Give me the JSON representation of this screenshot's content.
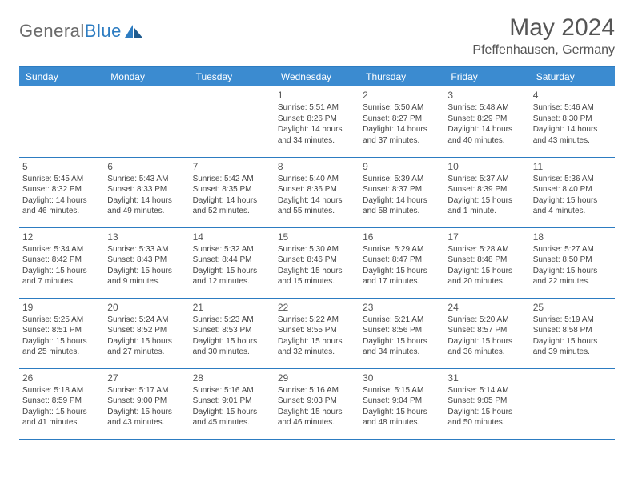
{
  "brand": {
    "part1": "General",
    "part2": "Blue"
  },
  "title": "May 2024",
  "location": "Pfeffenhausen, Germany",
  "style": {
    "header_bg": "#3b8bd0",
    "header_text": "#ffffff",
    "border_color": "#2d7cc1",
    "page_bg": "#ffffff",
    "text_color": "#444444",
    "title_color": "#555555",
    "title_fontsize": 30,
    "location_fontsize": 16,
    "dayheader_fontsize": 12,
    "cell_fontsize": 10
  },
  "day_headers": [
    "Sunday",
    "Monday",
    "Tuesday",
    "Wednesday",
    "Thursday",
    "Friday",
    "Saturday"
  ],
  "weeks": [
    [
      null,
      null,
      null,
      {
        "n": "1",
        "sr": "5:51 AM",
        "ss": "8:26 PM",
        "dl": "14 hours and 34 minutes."
      },
      {
        "n": "2",
        "sr": "5:50 AM",
        "ss": "8:27 PM",
        "dl": "14 hours and 37 minutes."
      },
      {
        "n": "3",
        "sr": "5:48 AM",
        "ss": "8:29 PM",
        "dl": "14 hours and 40 minutes."
      },
      {
        "n": "4",
        "sr": "5:46 AM",
        "ss": "8:30 PM",
        "dl": "14 hours and 43 minutes."
      }
    ],
    [
      {
        "n": "5",
        "sr": "5:45 AM",
        "ss": "8:32 PM",
        "dl": "14 hours and 46 minutes."
      },
      {
        "n": "6",
        "sr": "5:43 AM",
        "ss": "8:33 PM",
        "dl": "14 hours and 49 minutes."
      },
      {
        "n": "7",
        "sr": "5:42 AM",
        "ss": "8:35 PM",
        "dl": "14 hours and 52 minutes."
      },
      {
        "n": "8",
        "sr": "5:40 AM",
        "ss": "8:36 PM",
        "dl": "14 hours and 55 minutes."
      },
      {
        "n": "9",
        "sr": "5:39 AM",
        "ss": "8:37 PM",
        "dl": "14 hours and 58 minutes."
      },
      {
        "n": "10",
        "sr": "5:37 AM",
        "ss": "8:39 PM",
        "dl": "15 hours and 1 minute."
      },
      {
        "n": "11",
        "sr": "5:36 AM",
        "ss": "8:40 PM",
        "dl": "15 hours and 4 minutes."
      }
    ],
    [
      {
        "n": "12",
        "sr": "5:34 AM",
        "ss": "8:42 PM",
        "dl": "15 hours and 7 minutes."
      },
      {
        "n": "13",
        "sr": "5:33 AM",
        "ss": "8:43 PM",
        "dl": "15 hours and 9 minutes."
      },
      {
        "n": "14",
        "sr": "5:32 AM",
        "ss": "8:44 PM",
        "dl": "15 hours and 12 minutes."
      },
      {
        "n": "15",
        "sr": "5:30 AM",
        "ss": "8:46 PM",
        "dl": "15 hours and 15 minutes."
      },
      {
        "n": "16",
        "sr": "5:29 AM",
        "ss": "8:47 PM",
        "dl": "15 hours and 17 minutes."
      },
      {
        "n": "17",
        "sr": "5:28 AM",
        "ss": "8:48 PM",
        "dl": "15 hours and 20 minutes."
      },
      {
        "n": "18",
        "sr": "5:27 AM",
        "ss": "8:50 PM",
        "dl": "15 hours and 22 minutes."
      }
    ],
    [
      {
        "n": "19",
        "sr": "5:25 AM",
        "ss": "8:51 PM",
        "dl": "15 hours and 25 minutes."
      },
      {
        "n": "20",
        "sr": "5:24 AM",
        "ss": "8:52 PM",
        "dl": "15 hours and 27 minutes."
      },
      {
        "n": "21",
        "sr": "5:23 AM",
        "ss": "8:53 PM",
        "dl": "15 hours and 30 minutes."
      },
      {
        "n": "22",
        "sr": "5:22 AM",
        "ss": "8:55 PM",
        "dl": "15 hours and 32 minutes."
      },
      {
        "n": "23",
        "sr": "5:21 AM",
        "ss": "8:56 PM",
        "dl": "15 hours and 34 minutes."
      },
      {
        "n": "24",
        "sr": "5:20 AM",
        "ss": "8:57 PM",
        "dl": "15 hours and 36 minutes."
      },
      {
        "n": "25",
        "sr": "5:19 AM",
        "ss": "8:58 PM",
        "dl": "15 hours and 39 minutes."
      }
    ],
    [
      {
        "n": "26",
        "sr": "5:18 AM",
        "ss": "8:59 PM",
        "dl": "15 hours and 41 minutes."
      },
      {
        "n": "27",
        "sr": "5:17 AM",
        "ss": "9:00 PM",
        "dl": "15 hours and 43 minutes."
      },
      {
        "n": "28",
        "sr": "5:16 AM",
        "ss": "9:01 PM",
        "dl": "15 hours and 45 minutes."
      },
      {
        "n": "29",
        "sr": "5:16 AM",
        "ss": "9:03 PM",
        "dl": "15 hours and 46 minutes."
      },
      {
        "n": "30",
        "sr": "5:15 AM",
        "ss": "9:04 PM",
        "dl": "15 hours and 48 minutes."
      },
      {
        "n": "31",
        "sr": "5:14 AM",
        "ss": "9:05 PM",
        "dl": "15 hours and 50 minutes."
      },
      null
    ]
  ],
  "labels": {
    "sunrise": "Sunrise: ",
    "sunset": "Sunset: ",
    "daylight": "Daylight: "
  }
}
